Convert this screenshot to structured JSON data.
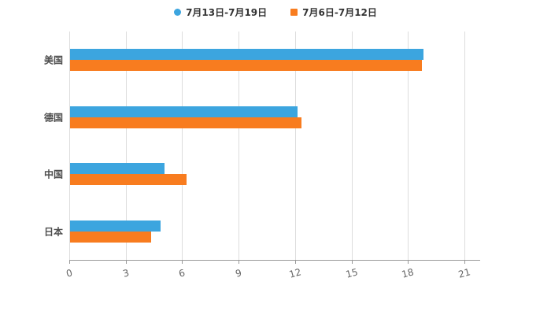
{
  "chart_data": {
    "type": "bar",
    "orientation": "horizontal",
    "title": "",
    "categories": [
      "美国",
      "德国",
      "中国",
      "日本"
    ],
    "series": [
      {
        "name": "7月13日-7月19日",
        "color": "#3CA5DF",
        "marker": "circle",
        "values": [
          18.8,
          12.1,
          5.0,
          4.8
        ]
      },
      {
        "name": "7月6日-7月12日",
        "color": "#F87C1F",
        "marker": "square",
        "values": [
          18.7,
          12.3,
          6.2,
          4.3
        ]
      }
    ],
    "xlim": [
      0,
      21
    ],
    "xticks": [
      0,
      3,
      6,
      9,
      12,
      15,
      18,
      21
    ],
    "grid": true,
    "legend_position": "top"
  },
  "colors": {
    "background": "#ffffff",
    "axis": "#999999",
    "grid": "#dddddd",
    "tick_label": "#666666",
    "category_label": "#4d4d4d",
    "legend_label": "#333333"
  }
}
